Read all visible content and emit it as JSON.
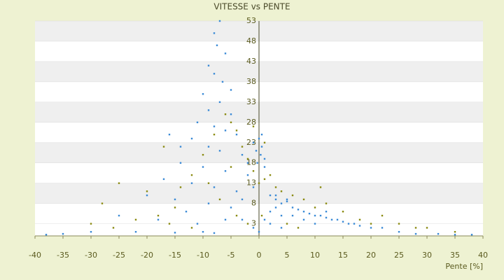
{
  "chart_data": {
    "type": "scatter",
    "title": "VITESSE vs PENTE",
    "x_label": "Pente [%]",
    "xlim": [
      -40,
      40
    ],
    "xticks": [
      -40,
      -35,
      -30,
      -25,
      -20,
      -15,
      -10,
      -5,
      0,
      5,
      10,
      15,
      20,
      25,
      30,
      35,
      40
    ],
    "ylim": [
      0,
      53
    ],
    "yticks": [
      3,
      8,
      13,
      18,
      23,
      28,
      33,
      38,
      43,
      48,
      53
    ],
    "grid": true,
    "series": [
      {
        "color": "#3a8ad6",
        "x": [
          -8,
          -7,
          -7.5,
          -6,
          -9,
          -8,
          -6.5,
          -5,
          -10,
          -7,
          -9,
          -5,
          -11,
          -8,
          -6,
          -4,
          -12,
          -9,
          -7,
          -3,
          -14,
          -10,
          -6,
          -2,
          -17,
          -12,
          -8,
          -4,
          -20,
          -15,
          -9,
          -5,
          -25,
          -18,
          -11,
          -3,
          -30,
          -22,
          -15,
          -8,
          -35,
          -38,
          0,
          0.5,
          -0.5,
          0.3,
          -1,
          1,
          0.5,
          -0.3,
          1,
          2,
          3,
          4,
          5,
          3,
          6,
          7,
          8,
          9,
          10,
          11,
          12,
          13,
          14,
          15,
          16,
          17,
          18,
          20,
          22,
          25,
          28,
          32,
          35,
          38,
          2,
          4,
          6,
          8,
          3,
          5,
          1,
          2,
          -1,
          0,
          4,
          10,
          12,
          -16,
          -14,
          -2,
          -1,
          -3,
          -6,
          -13,
          -10
        ],
        "values": [
          50,
          53,
          47,
          45,
          42,
          40,
          38,
          36,
          35,
          33,
          31,
          30,
          28,
          27,
          26,
          25,
          24,
          22,
          21,
          20,
          18,
          17,
          16,
          18,
          14,
          13,
          12,
          11,
          10,
          9,
          8,
          7,
          5,
          4,
          3,
          4,
          1,
          1,
          0.8,
          0.7,
          0.5,
          0.3,
          24,
          22,
          21,
          20,
          23,
          19,
          25,
          18,
          17,
          10,
          9,
          8,
          8.5,
          7,
          7,
          6.5,
          6,
          5.5,
          5,
          5,
          4.5,
          4,
          4,
          3.5,
          3,
          3,
          2.5,
          2,
          2,
          1,
          0.5,
          0.5,
          0.3,
          0.3,
          6,
          5,
          5,
          4,
          10,
          9,
          4,
          3,
          2,
          1,
          2,
          3,
          6,
          25,
          22,
          15,
          12,
          9,
          4,
          6,
          1
        ]
      },
      {
        "color": "#8a8a10",
        "x": [
          -28,
          -25,
          -20,
          -15,
          -12,
          -10,
          -8,
          -6,
          -5,
          -4,
          -3,
          -2,
          -1,
          0,
          1,
          2,
          3,
          4,
          6,
          8,
          10,
          12,
          15,
          18,
          20,
          22,
          25,
          28,
          30,
          35,
          -18,
          -22,
          -30,
          -26,
          -14,
          -9,
          -7,
          -4,
          -2,
          0.5,
          5,
          7,
          11,
          -17,
          -5,
          -1,
          1,
          -16,
          -12
        ],
        "values": [
          8,
          13,
          11,
          7,
          15,
          20,
          25,
          30,
          28,
          26,
          22,
          19,
          16,
          13,
          14,
          15,
          12,
          11,
          10,
          9,
          7,
          8,
          6,
          4,
          3,
          5,
          3,
          2,
          2,
          1,
          5,
          4,
          3,
          2,
          12,
          13,
          9,
          5,
          3,
          5,
          3,
          2,
          12,
          22,
          17,
          27,
          23,
          3,
          2
        ]
      }
    ]
  }
}
